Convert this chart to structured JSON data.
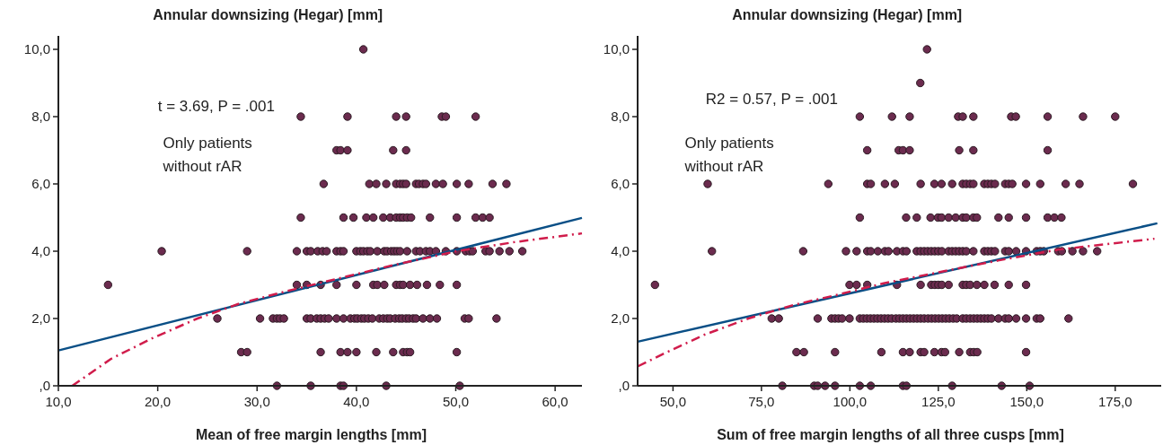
{
  "chart_data": [
    {
      "type": "scatter",
      "ylabel": "Annular downsizing (Hegar) [mm]",
      "xlabel": "Mean of free margin lengths [mm]",
      "xlim": [
        10,
        62.7
      ],
      "ylim": [
        0,
        10.4
      ],
      "xticks": [
        {
          "value": 10,
          "label": "10,0"
        },
        {
          "value": 20,
          "label": "20,0"
        },
        {
          "value": 30,
          "label": "30,0"
        },
        {
          "value": 40,
          "label": "40,0"
        },
        {
          "value": 50,
          "label": "50,0"
        },
        {
          "value": 60,
          "label": "60,0"
        }
      ],
      "yticks": [
        {
          "value": 0,
          "label": ",0"
        },
        {
          "value": 2,
          "label": "2,0"
        },
        {
          "value": 4,
          "label": "4,0"
        },
        {
          "value": 6,
          "label": "6,0"
        },
        {
          "value": 8,
          "label": "8,0"
        },
        {
          "value": 10,
          "label": "10,0"
        }
      ],
      "annotations": [
        "t = 3.69, P = .001",
        "Only patients without rAR"
      ],
      "series": [
        {
          "type": "scatter",
          "marker": "circle",
          "color": "#6b2b4e",
          "x": [
            40.7,
            34.4,
            39.1,
            44.0,
            45.0,
            48.6,
            49.0,
            52.0,
            38.0,
            38.4,
            39.1,
            43.7,
            45.0,
            36.7,
            41.3,
            42.0,
            43.0,
            44.0,
            44.4,
            44.7,
            45.0,
            46.0,
            46.3,
            46.7,
            47.0,
            48.0,
            48.7,
            50.1,
            51.3,
            53.7,
            55.1,
            34.4,
            38.7,
            39.7,
            41.0,
            41.7,
            42.7,
            43.4,
            44.0,
            44.4,
            44.7,
            45.1,
            45.5,
            47.4,
            50.1,
            52.0,
            52.7,
            53.4,
            20.4,
            29.0,
            34.0,
            35.0,
            35.4,
            36.1,
            36.6,
            37.0,
            38.0,
            38.4,
            38.7,
            40.0,
            40.4,
            40.7,
            41.1,
            41.4,
            42.1,
            42.8,
            43.1,
            43.5,
            43.8,
            44.1,
            44.4,
            45.1,
            46.0,
            46.4,
            47.0,
            47.4,
            48.0,
            49.0,
            50.1,
            51.0,
            51.4,
            51.7,
            53.0,
            53.4,
            54.4,
            55.4,
            56.7,
            15.0,
            34.0,
            35.0,
            36.4,
            38.0,
            40.0,
            41.7,
            42.1,
            42.8,
            44.0,
            44.4,
            44.7,
            45.4,
            46.1,
            47.1,
            48.4,
            50.1,
            26.0,
            30.3,
            31.6,
            32.0,
            32.3,
            32.7,
            35.0,
            35.4,
            36.0,
            36.4,
            36.8,
            37.2,
            38.0,
            38.7,
            39.4,
            39.8,
            40.1,
            40.5,
            40.8,
            41.2,
            41.6,
            42.3,
            42.7,
            43.1,
            43.4,
            43.9,
            44.3,
            44.6,
            45.0,
            45.3,
            45.7,
            46.0,
            46.7,
            47.4,
            48.1,
            50.9,
            51.3,
            54.1,
            28.4,
            29.0,
            36.4,
            38.4,
            39.1,
            40.0,
            42.0,
            43.7,
            44.7,
            45.1,
            45.4,
            50.1,
            32.0,
            35.4,
            38.4,
            38.7,
            43.0,
            50.4
          ],
          "values": [
            10,
            8,
            8,
            8,
            8,
            8,
            8,
            8,
            7,
            7,
            7,
            7,
            7,
            6,
            6,
            6,
            6,
            6,
            6,
            6,
            6,
            6,
            6,
            6,
            6,
            6,
            6,
            6,
            6,
            6,
            6,
            5,
            5,
            5,
            5,
            5,
            5,
            5,
            5,
            5,
            5,
            5,
            5,
            5,
            5,
            5,
            5,
            5,
            4,
            4,
            4,
            4,
            4,
            4,
            4,
            4,
            4,
            4,
            4,
            4,
            4,
            4,
            4,
            4,
            4,
            4,
            4,
            4,
            4,
            4,
            4,
            4,
            4,
            4,
            4,
            4,
            4,
            4,
            4,
            4,
            4,
            4,
            4,
            4,
            4,
            4,
            4,
            3,
            3,
            3,
            3,
            3,
            3,
            3,
            3,
            3,
            3,
            3,
            3,
            3,
            3,
            3,
            3,
            3,
            2,
            2,
            2,
            2,
            2,
            2,
            2,
            2,
            2,
            2,
            2,
            2,
            2,
            2,
            2,
            2,
            2,
            2,
            2,
            2,
            2,
            2,
            2,
            2,
            2,
            2,
            2,
            2,
            2,
            2,
            2,
            2,
            2,
            2,
            2,
            2,
            2,
            2,
            1,
            1,
            1,
            1,
            1,
            1,
            1,
            1,
            1,
            1,
            1,
            1,
            0,
            0,
            0,
            0,
            0,
            0
          ]
        },
        {
          "type": "line",
          "color": "#0a4f86",
          "line_style": "solid",
          "x": [
            10,
            62.7
          ],
          "values": [
            1.05,
            4.99
          ]
        },
        {
          "type": "line",
          "color": "#d01c4b",
          "line_style": "dashed",
          "x": [
            11.4,
            15.3,
            19.5,
            24.0,
            28.2,
            32.8,
            37.8,
            43.9,
            50.1,
            55.9,
            62.7
          ],
          "values": [
            0,
            0.8,
            1.42,
            2.0,
            2.44,
            2.8,
            3.16,
            3.6,
            4.0,
            4.27,
            4.53
          ]
        }
      ]
    },
    {
      "type": "scatter",
      "ylabel": "Annular downsizing (Hegar) [mm]",
      "xlabel": "Sum of free margin lengths of all three cusps [mm]",
      "xlim": [
        40,
        188
      ],
      "ylim": [
        0,
        10.4
      ],
      "xticks": [
        {
          "value": 50,
          "label": "50,0"
        },
        {
          "value": 75,
          "label": "75,0"
        },
        {
          "value": 100,
          "label": "100,0"
        },
        {
          "value": 125,
          "label": "125,0"
        },
        {
          "value": 150,
          "label": "150,0"
        },
        {
          "value": 175,
          "label": "175,0"
        }
      ],
      "yticks": [
        {
          "value": 0,
          "label": ",0"
        },
        {
          "value": 2,
          "label": "2,0"
        },
        {
          "value": 4,
          "label": "4,0"
        },
        {
          "value": 6,
          "label": "6,0"
        },
        {
          "value": 8,
          "label": "8,0"
        },
        {
          "value": 10,
          "label": "10,0"
        }
      ],
      "annotations": [
        "R2 = 0.57, P = .001",
        "Only patients without rAR"
      ],
      "series": [
        {
          "type": "scatter",
          "marker": "circle",
          "color": "#6b2b4e",
          "x": [
            121.8,
            119.9,
            102.8,
            111.9,
            116.9,
            130.6,
            131.9,
            134.9,
            145.6,
            146.9,
            155.9,
            165.9,
            175.0,
            104.9,
            113.8,
            115.0,
            116.9,
            130.9,
            134.9,
            155.9,
            59.8,
            93.9,
            104.9,
            105.9,
            109.9,
            112.7,
            120.0,
            123.9,
            125.9,
            128.9,
            131.9,
            132.9,
            134.0,
            134.9,
            138.0,
            139.0,
            140.0,
            141.0,
            143.9,
            144.9,
            145.9,
            149.8,
            153.8,
            161.0,
            164.9,
            180.0,
            102.8,
            115.9,
            118.9,
            122.8,
            124.9,
            125.9,
            127.9,
            129.9,
            131.9,
            132.9,
            134.9,
            135.9,
            142.0,
            144.9,
            149.8,
            155.9,
            157.8,
            159.8,
            61.0,
            86.8,
            98.9,
            101.9,
            104.9,
            105.9,
            107.9,
            109.9,
            110.9,
            113.3,
            115.0,
            116.0,
            118.9,
            120.0,
            121.0,
            122.0,
            123.0,
            124.0,
            125.0,
            126.0,
            127.9,
            128.9,
            129.9,
            130.9,
            131.9,
            132.9,
            134.9,
            138.0,
            139.0,
            140.0,
            141.0,
            143.9,
            144.9,
            147.0,
            149.8,
            152.8,
            153.8,
            154.8,
            158.9,
            159.9,
            162.9,
            165.9,
            169.9,
            44.9,
            99.9,
            101.9,
            104.9,
            113.3,
            120.0,
            123.0,
            124.0,
            125.0,
            126.0,
            127.9,
            131.9,
            132.9,
            134.0,
            135.9,
            138.0,
            140.9,
            144.9,
            149.8,
            77.9,
            79.9,
            90.9,
            94.8,
            95.8,
            96.8,
            97.8,
            99.9,
            102.8,
            103.8,
            104.8,
            105.8,
            106.8,
            107.8,
            108.8,
            109.8,
            110.8,
            111.8,
            113.0,
            114.0,
            115.0,
            116.0,
            117.0,
            118.0,
            119.0,
            120.0,
            121.0,
            122.1,
            123.1,
            124.1,
            125.1,
            126.1,
            127.1,
            128.1,
            129.2,
            130.2,
            131.9,
            132.9,
            134.0,
            135.0,
            136.0,
            137.0,
            138.0,
            139.0,
            140.0,
            142.0,
            143.9,
            144.9,
            147.0,
            149.8,
            152.8,
            153.8,
            161.8,
            84.9,
            87.0,
            95.8,
            108.9,
            115.0,
            116.9,
            120.0,
            121.0,
            123.9,
            125.9,
            126.9,
            130.9,
            134.0,
            135.0,
            136.0,
            149.8,
            80.9,
            89.9,
            90.9,
            93.0,
            95.8,
            102.8,
            105.9,
            115.0,
            116.0,
            128.9,
            142.9,
            150.8
          ],
          "values": [
            10,
            9,
            8,
            8,
            8,
            8,
            8,
            8,
            8,
            8,
            8,
            8,
            8,
            7,
            7,
            7,
            7,
            7,
            7,
            7,
            6,
            6,
            6,
            6,
            6,
            6,
            6,
            6,
            6,
            6,
            6,
            6,
            6,
            6,
            6,
            6,
            6,
            6,
            6,
            6,
            6,
            6,
            6,
            6,
            6,
            6,
            5,
            5,
            5,
            5,
            5,
            5,
            5,
            5,
            5,
            5,
            5,
            5,
            5,
            5,
            5,
            5,
            5,
            5,
            4,
            4,
            4,
            4,
            4,
            4,
            4,
            4,
            4,
            4,
            4,
            4,
            4,
            4,
            4,
            4,
            4,
            4,
            4,
            4,
            4,
            4,
            4,
            4,
            4,
            4,
            4,
            4,
            4,
            4,
            4,
            4,
            4,
            4,
            4,
            4,
            4,
            4,
            4,
            4,
            4,
            4,
            4,
            3,
            3,
            3,
            3,
            3,
            3,
            3,
            3,
            3,
            3,
            3,
            3,
            3,
            3,
            3,
            3,
            3,
            3,
            3,
            2,
            2,
            2,
            2,
            2,
            2,
            2,
            2,
            2,
            2,
            2,
            2,
            2,
            2,
            2,
            2,
            2,
            2,
            2,
            2,
            2,
            2,
            2,
            2,
            2,
            2,
            2,
            2,
            2,
            2,
            2,
            2,
            2,
            2,
            2,
            2,
            2,
            2,
            2,
            2,
            2,
            2,
            2,
            2,
            2,
            2,
            2,
            2,
            2,
            2,
            2,
            2,
            2,
            1,
            1,
            1,
            1,
            1,
            1,
            1,
            1,
            1,
            1,
            1,
            1,
            1,
            1,
            1,
            1,
            0,
            0,
            0,
            0,
            0,
            0,
            0,
            0,
            0,
            0,
            0,
            0
          ]
        },
        {
          "type": "line",
          "color": "#0a4f86",
          "line_style": "solid",
          "x": [
            40,
            186.9
          ],
          "values": [
            1.31,
            4.83
          ]
        },
        {
          "type": "line",
          "color": "#d01c4b",
          "line_style": "dashed",
          "x": [
            40.1,
            46.9,
            58.7,
            71.3,
            84.0,
            96.7,
            109.3,
            125.4,
            142.2,
            159.1,
            186.1
          ],
          "values": [
            0.58,
            0.93,
            1.51,
            2.0,
            2.4,
            2.71,
            3.04,
            3.38,
            3.73,
            4.05,
            4.37
          ]
        }
      ]
    }
  ]
}
